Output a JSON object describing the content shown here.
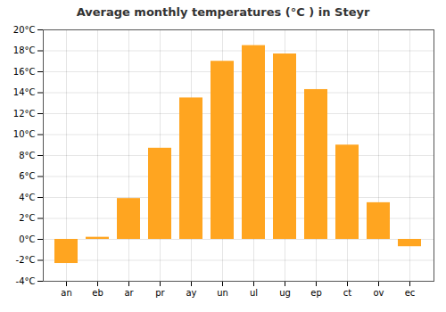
{
  "chart_data": {
    "type": "bar",
    "title": "Average monthly temperatures (°C ) in Steyr",
    "categories": [
      "an",
      "eb",
      "ar",
      "pr",
      "ay",
      "un",
      "ul",
      "ug",
      "ep",
      "ct",
      "ov",
      "ec"
    ],
    "values": [
      -2.3,
      0.2,
      3.9,
      8.7,
      13.5,
      17.0,
      18.5,
      17.7,
      14.3,
      9.0,
      3.5,
      -0.7
    ],
    "color": "#FFA520",
    "ylim": [
      -4,
      20
    ],
    "yticks": [
      {
        "value": -4,
        "label": "-4°C"
      },
      {
        "value": -2,
        "label": "-2°C"
      },
      {
        "value": 0,
        "label": "0°C"
      },
      {
        "value": 2,
        "label": "2°C"
      },
      {
        "value": 4,
        "label": "4°C"
      },
      {
        "value": 6,
        "label": "6°C"
      },
      {
        "value": 8,
        "label": "8°C"
      },
      {
        "value": 10,
        "label": "10°C"
      },
      {
        "value": 12,
        "label": "12°C"
      },
      {
        "value": 14,
        "label": "14°C"
      },
      {
        "value": 16,
        "label": "16°C"
      },
      {
        "value": 18,
        "label": "18°C"
      },
      {
        "value": 20,
        "label": "20°C"
      }
    ],
    "grid": true
  }
}
